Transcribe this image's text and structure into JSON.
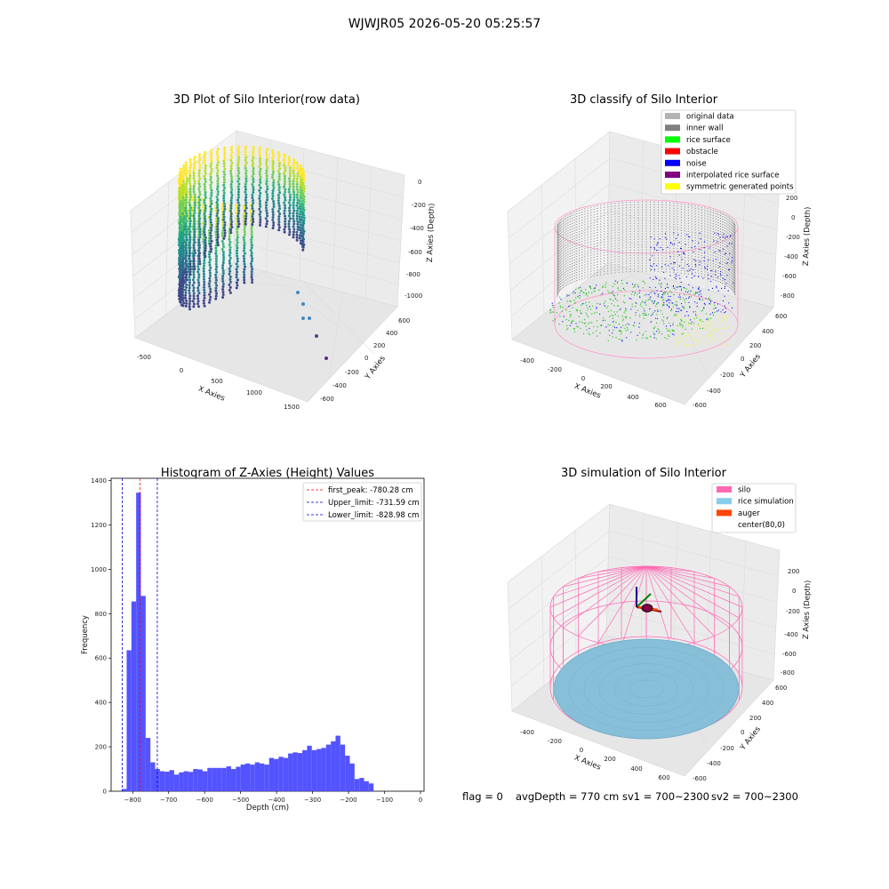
{
  "figure": {
    "suptitle": "WJWJR05 2026-05-20 05:25:57",
    "footer": {
      "flag": "flag = 0",
      "avg_depth": "avgDepth = 770 cm",
      "sv1": "sv1 = 700~2300",
      "sv2": "sv2 = 700~2300"
    }
  },
  "chart_data": [
    {
      "type": "scatter",
      "projection": "3d",
      "title": "3D Plot of Silo Interior(row data)",
      "xlabel": "X Axies",
      "ylabel": "Y Axies",
      "zlabel": "Z Axies (Depth)",
      "x_ticks": [
        "-500",
        "0",
        "500",
        "1000",
        "1500"
      ],
      "y_ticks": [
        "-600",
        "-400",
        "-200",
        "0",
        "200",
        "400",
        "600"
      ],
      "z_ticks": [
        "-1000",
        "-800",
        "-600",
        "-400",
        "-200",
        "0"
      ],
      "colormap": "viridis",
      "outliers": [
        {
          "x": 1000,
          "y": -100,
          "z": -850
        },
        {
          "x": 1150,
          "y": -300,
          "z": -900
        },
        {
          "x": 1300,
          "y": -500,
          "z": -950
        },
        {
          "x": 1450,
          "y": -600,
          "z": -1000
        }
      ]
    },
    {
      "type": "scatter",
      "projection": "3d",
      "title": "3D classify of Silo Interior",
      "xlabel": "X Axies",
      "ylabel": "Y Axies",
      "zlabel": "Z Axies (Depth)",
      "x_ticks": [
        "-400",
        "-200",
        "0",
        "200",
        "400",
        "600"
      ],
      "y_ticks": [
        "-600",
        "-400",
        "-200",
        "0",
        "200",
        "400",
        "600"
      ],
      "z_ticks": [
        "-800",
        "-600",
        "-400",
        "-200",
        "0",
        "200"
      ],
      "legend_position": "upper-right",
      "legend": [
        {
          "label": "original data",
          "color": "#b3b3b3"
        },
        {
          "label": "inner wall",
          "color": "#808080"
        },
        {
          "label": "rice surface",
          "color": "#00ff00"
        },
        {
          "label": "obstacle",
          "color": "#ff0000"
        },
        {
          "label": "noise",
          "color": "#0000ff"
        },
        {
          "label": "interpolated rice surface",
          "color": "#800080"
        },
        {
          "label": "symmetric generated points",
          "color": "#ffff00"
        }
      ]
    },
    {
      "type": "bar",
      "title": "Histogram of Z-Axies (Height) Values",
      "xlabel": "Depth (cm)",
      "ylabel": "Frequency",
      "xlim": [
        -860,
        10
      ],
      "ylim": [
        0,
        1410
      ],
      "x_ticks": [
        -800,
        -700,
        -600,
        -500,
        -400,
        -300,
        -200,
        -100,
        0
      ],
      "y_ticks": [
        0,
        200,
        400,
        600,
        800,
        1000,
        1200,
        1400
      ],
      "bar_color": "#4d4dff",
      "bin_start": -830,
      "bin_width": 13.2,
      "values": [
        10,
        635,
        855,
        1345,
        880,
        240,
        130,
        100,
        90,
        88,
        95,
        75,
        85,
        90,
        87,
        100,
        98,
        90,
        105,
        105,
        105,
        105,
        112,
        100,
        110,
        120,
        125,
        120,
        130,
        125,
        120,
        150,
        145,
        155,
        150,
        170,
        175,
        172,
        185,
        205,
        185,
        190,
        195,
        210,
        225,
        250,
        210,
        160,
        125,
        55,
        60,
        45,
        35
      ],
      "legend_position": "upper-right",
      "lines": [
        {
          "label": "first_peak: -780.28 cm",
          "x": -780.28,
          "color": "#ff0000"
        },
        {
          "label": "Upper_limit: -731.59 cm",
          "x": -731.59,
          "color": "#0000cc"
        },
        {
          "label": "Lower_limit: -828.98 cm",
          "x": -828.98,
          "color": "#0000cc"
        }
      ]
    },
    {
      "type": "surface",
      "projection": "3d",
      "title": "3D simulation of Silo Interior",
      "xlabel": "X Axies",
      "ylabel": "Y Axies",
      "zlabel": "Z Axies (Depth)",
      "x_ticks": [
        "-400",
        "-200",
        "0",
        "200",
        "400",
        "600"
      ],
      "y_ticks": [
        "-600",
        "-400",
        "-200",
        "0",
        "200",
        "400",
        "600"
      ],
      "z_ticks": [
        "-800",
        "-600",
        "-400",
        "-200",
        "0",
        "200"
      ],
      "legend_position": "upper-right",
      "legend": [
        {
          "label": "silo",
          "color": "#ff69b4"
        },
        {
          "label": "rice simulation",
          "color": "#87ceeb"
        },
        {
          "label": "auger",
          "color": "#ff4500"
        },
        {
          "label": "center(80,0)",
          "color": "#ffffff"
        }
      ]
    }
  ]
}
